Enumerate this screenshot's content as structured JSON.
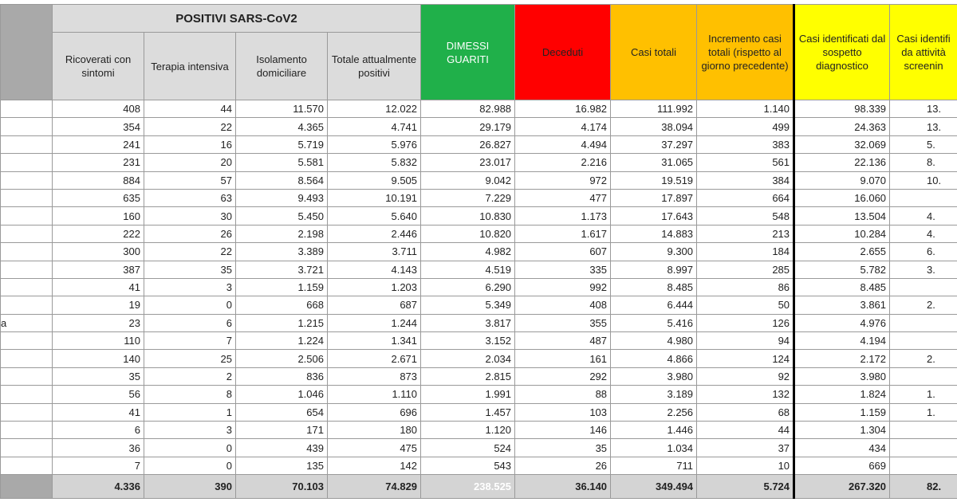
{
  "table": {
    "group_header": "POSITIVI SARS-CoV2",
    "columns": [
      null,
      "Ricoverati con sintomi",
      "Terapia intensiva",
      "Isolamento domiciliare",
      "Totale attualmente positivi",
      "DIMESSI GUARITI",
      "Deceduti",
      "Casi totali",
      "Incremento casi totali (rispetto al giorno precedente)",
      "Casi identificati dal sospetto diagnostico",
      "Casi identifi da attività screenin"
    ],
    "rows": [
      [
        null,
        "408",
        "44",
        "11.570",
        "12.022",
        "82.988",
        "16.982",
        "111.992",
        "1.140",
        "98.339",
        "13."
      ],
      [
        null,
        "354",
        "22",
        "4.365",
        "4.741",
        "29.179",
        "4.174",
        "38.094",
        "499",
        "24.363",
        "13."
      ],
      [
        null,
        "241",
        "16",
        "5.719",
        "5.976",
        "26.827",
        "4.494",
        "37.297",
        "383",
        "32.069",
        "5."
      ],
      [
        null,
        "231",
        "20",
        "5.581",
        "5.832",
        "23.017",
        "2.216",
        "31.065",
        "561",
        "22.136",
        "8."
      ],
      [
        null,
        "884",
        "57",
        "8.564",
        "9.505",
        "9.042",
        "972",
        "19.519",
        "384",
        "9.070",
        "10."
      ],
      [
        null,
        "635",
        "63",
        "9.493",
        "10.191",
        "7.229",
        "477",
        "17.897",
        "664",
        "16.060",
        null
      ],
      [
        null,
        "160",
        "30",
        "5.450",
        "5.640",
        "10.830",
        "1.173",
        "17.643",
        "548",
        "13.504",
        "4."
      ],
      [
        null,
        "222",
        "26",
        "2.198",
        "2.446",
        "10.820",
        "1.617",
        "14.883",
        "213",
        "10.284",
        "4."
      ],
      [
        null,
        "300",
        "22",
        "3.389",
        "3.711",
        "4.982",
        "607",
        "9.300",
        "184",
        "2.655",
        "6."
      ],
      [
        null,
        "387",
        "35",
        "3.721",
        "4.143",
        "4.519",
        "335",
        "8.997",
        "285",
        "5.782",
        "3."
      ],
      [
        null,
        "41",
        "3",
        "1.159",
        "1.203",
        "6.290",
        "992",
        "8.485",
        "86",
        "8.485",
        null
      ],
      [
        null,
        "19",
        "0",
        "668",
        "687",
        "5.349",
        "408",
        "6.444",
        "50",
        "3.861",
        "2."
      ],
      [
        "a",
        "23",
        "6",
        "1.215",
        "1.244",
        "3.817",
        "355",
        "5.416",
        "126",
        "4.976",
        null
      ],
      [
        null,
        "110",
        "7",
        "1.224",
        "1.341",
        "3.152",
        "487",
        "4.980",
        "94",
        "4.194",
        null
      ],
      [
        null,
        "140",
        "25",
        "2.506",
        "2.671",
        "2.034",
        "161",
        "4.866",
        "124",
        "2.172",
        "2."
      ],
      [
        null,
        "35",
        "2",
        "836",
        "873",
        "2.815",
        "292",
        "3.980",
        "92",
        "3.980",
        null
      ],
      [
        null,
        "56",
        "8",
        "1.046",
        "1.110",
        "1.991",
        "88",
        "3.189",
        "132",
        "1.824",
        "1."
      ],
      [
        null,
        "41",
        "1",
        "654",
        "696",
        "1.457",
        "103",
        "2.256",
        "68",
        "1.159",
        "1."
      ],
      [
        null,
        "6",
        "3",
        "171",
        "180",
        "1.120",
        "146",
        "1.446",
        "44",
        "1.304",
        null
      ],
      [
        null,
        "36",
        "0",
        "439",
        "475",
        "524",
        "35",
        "1.034",
        "37",
        "434",
        null
      ],
      [
        null,
        "7",
        "0",
        "135",
        "142",
        "543",
        "26",
        "711",
        "10",
        "669",
        null
      ]
    ],
    "total": [
      null,
      "4.336",
      "390",
      "70.103",
      "74.829",
      "238.525",
      "36.140",
      "349.494",
      "5.724",
      "267.320",
      "82."
    ]
  }
}
